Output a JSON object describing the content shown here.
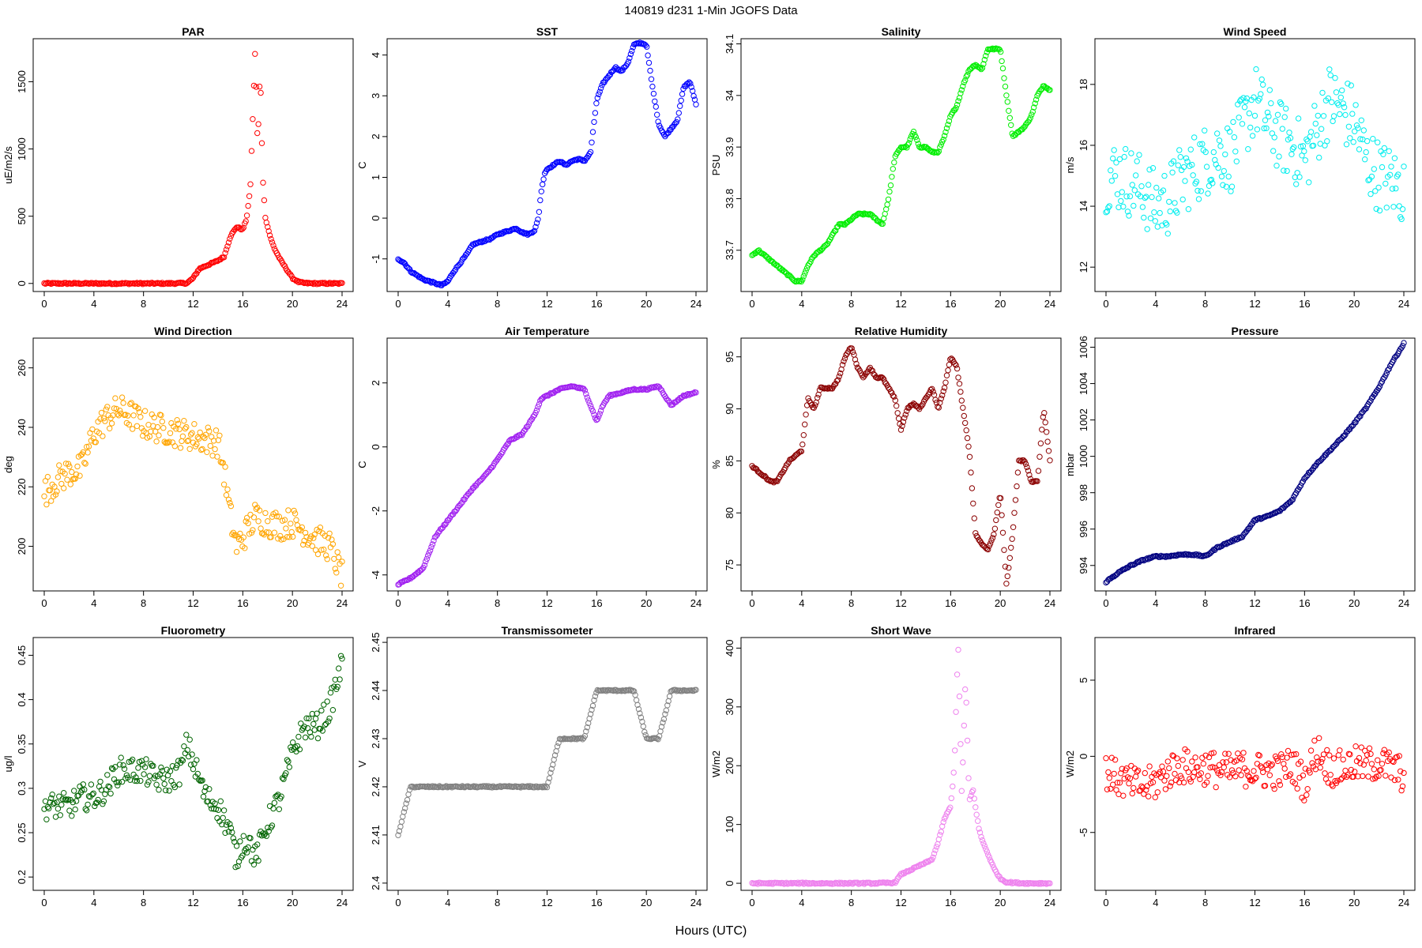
{
  "title": "140819    d231    1-Min  JGOFS Data",
  "xlabel": "Hours (UTC)",
  "chart_data": [
    {
      "type": "scatter",
      "title": "PAR",
      "ylabel": "uE/m2/s",
      "color": "#ff0000",
      "xlim": [
        0,
        24
      ],
      "ylim": [
        -60,
        1820
      ],
      "yticks": [
        0,
        500,
        1000,
        1500
      ],
      "xticks": [
        0,
        4,
        8,
        12,
        16,
        20,
        24
      ],
      "x": [
        0,
        2,
        4,
        6,
        8,
        10,
        11.5,
        12,
        12.5,
        13,
        13.5,
        14,
        14.5,
        15,
        15.5,
        16,
        16.3,
        16.6,
        17,
        17.2,
        17.4,
        17.6,
        17.8,
        18,
        18.3,
        18.6,
        19,
        19.5,
        20,
        20.5,
        21,
        22,
        23,
        24
      ],
      "y": [
        0,
        0,
        0,
        0,
        0,
        0,
        2,
        40,
        110,
        130,
        150,
        170,
        200,
        350,
        420,
        400,
        480,
        700,
        1750,
        1000,
        1600,
        800,
        500,
        420,
        320,
        250,
        180,
        110,
        40,
        10,
        2,
        0,
        0,
        0
      ]
    },
    {
      "type": "scatter",
      "title": "SST",
      "ylabel": "C",
      "color": "#0000ff",
      "xlim": [
        0,
        24
      ],
      "ylim": [
        -1.8,
        4.4
      ],
      "yticks": [
        -1,
        0,
        1,
        2,
        3,
        4
      ],
      "xticks": [
        0,
        4,
        8,
        12,
        16,
        20,
        24
      ],
      "x": [
        0,
        0.5,
        1,
        1.5,
        2,
        2.5,
        3,
        3.5,
        4,
        4.5,
        5,
        5.5,
        6,
        6.5,
        7,
        7.5,
        8,
        8.5,
        9,
        9.5,
        10,
        10.5,
        11,
        11.3,
        11.5,
        11.8,
        12,
        12.5,
        13,
        13.5,
        14,
        14.5,
        15,
        15.5,
        16,
        16.5,
        17,
        17.5,
        18,
        18.5,
        19,
        19.5,
        20,
        20.5,
        21,
        21.5,
        22,
        22.5,
        23,
        23.5,
        24
      ],
      "y": [
        -1,
        -1.1,
        -1.3,
        -1.4,
        -1.5,
        -1.55,
        -1.6,
        -1.65,
        -1.55,
        -1.3,
        -1.1,
        -0.9,
        -0.65,
        -0.6,
        -0.55,
        -0.5,
        -0.4,
        -0.35,
        -0.3,
        -0.25,
        -0.35,
        -0.4,
        -0.3,
        0,
        0.6,
        1.1,
        1.2,
        1.3,
        1.4,
        1.3,
        1.4,
        1.45,
        1.4,
        1.6,
        2.9,
        3.3,
        3.5,
        3.7,
        3.6,
        3.8,
        4.25,
        4.3,
        4.25,
        3.2,
        2.3,
        2,
        2.2,
        2.4,
        3.2,
        3.35,
        2.8
      ]
    },
    {
      "type": "scatter",
      "title": "Salinity",
      "ylabel": "PSU",
      "color": "#00ee00",
      "xlim": [
        0,
        24
      ],
      "ylim": [
        33.62,
        34.11
      ],
      "yticks": [
        33.7,
        33.8,
        33.9,
        34.0,
        34.1
      ],
      "xticks": [
        0,
        4,
        8,
        12,
        16,
        20,
        24
      ],
      "x": [
        0,
        0.5,
        1,
        1.5,
        2,
        2.5,
        3,
        3.5,
        4,
        4.5,
        5,
        5.5,
        6,
        6.5,
        7,
        7.5,
        8,
        8.5,
        9,
        9.5,
        10,
        10.5,
        11,
        11.5,
        12,
        12.5,
        13,
        13.5,
        14,
        14.5,
        15,
        15.5,
        16,
        16.5,
        17,
        17.5,
        18,
        18.5,
        19,
        19.5,
        20,
        20.5,
        21,
        21.5,
        22,
        22.5,
        23,
        23.5,
        24
      ],
      "y": [
        33.69,
        33.7,
        33.69,
        33.68,
        33.67,
        33.66,
        33.65,
        33.64,
        33.64,
        33.67,
        33.69,
        33.7,
        33.71,
        33.73,
        33.75,
        33.75,
        33.76,
        33.77,
        33.77,
        33.77,
        33.76,
        33.75,
        33.8,
        33.88,
        33.9,
        33.9,
        33.93,
        33.9,
        33.9,
        33.89,
        33.89,
        33.92,
        33.96,
        33.98,
        34.02,
        34.05,
        34.06,
        34.05,
        34.09,
        34.09,
        34.09,
        34.0,
        33.92,
        33.93,
        33.94,
        33.96,
        34.0,
        34.02,
        34.01
      ]
    },
    {
      "type": "scatter",
      "title": "Wind Speed",
      "ylabel": "m/s",
      "color": "#00eeee",
      "xlim": [
        0,
        24
      ],
      "ylim": [
        11.2,
        19.5
      ],
      "yticks": [
        12,
        14,
        16,
        18
      ],
      "xticks": [
        0,
        4,
        8,
        12,
        16,
        20,
        24
      ],
      "x": [
        0,
        1,
        2,
        3,
        4,
        5,
        6,
        7,
        8,
        9,
        10,
        11,
        12,
        13,
        14,
        15,
        16,
        17,
        18,
        19,
        20,
        21,
        22,
        23,
        24
      ],
      "y": [
        15,
        15,
        14.8,
        14.5,
        14,
        14.2,
        14.8,
        15.2,
        15.5,
        15.8,
        15.6,
        16.5,
        17.5,
        16.8,
        16.3,
        16.0,
        15.5,
        16.5,
        17.5,
        17.2,
        16.8,
        15.5,
        15.0,
        14.8,
        14.5
      ],
      "spread": 1.2
    },
    {
      "type": "scatter",
      "title": "Wind Direction",
      "ylabel": "deg",
      "color": "#ffa500",
      "xlim": [
        0,
        24
      ],
      "ylim": [
        185,
        270
      ],
      "yticks": [
        200,
        220,
        240,
        260
      ],
      "xticks": [
        0,
        4,
        8,
        12,
        16,
        20,
        24
      ],
      "x": [
        0,
        1,
        2,
        3,
        4,
        5,
        6,
        7,
        8,
        9,
        10,
        11,
        12,
        13,
        14,
        14.5,
        15,
        15.5,
        16,
        17,
        18,
        19,
        20,
        21,
        22,
        23,
        24
      ],
      "y": [
        218,
        222,
        225,
        226,
        238,
        243,
        246,
        244,
        241,
        240,
        239,
        238,
        237,
        236,
        235,
        225,
        210,
        200,
        203,
        210,
        208,
        207,
        208,
        205,
        202,
        200,
        190
      ],
      "spread": 5
    },
    {
      "type": "scatter",
      "title": "Air Temperature",
      "ylabel": "C",
      "color": "#a020f0",
      "xlim": [
        0,
        24
      ],
      "ylim": [
        -4.5,
        3.4
      ],
      "yticks": [
        -4,
        -2,
        0,
        2
      ],
      "xticks": [
        0,
        4,
        8,
        12,
        16,
        20,
        24
      ],
      "x": [
        0,
        1,
        2,
        3,
        4,
        5,
        6,
        7,
        8,
        9,
        10,
        11,
        11.5,
        12,
        12.5,
        13,
        14,
        15,
        15.5,
        16,
        16.5,
        17,
        18,
        19,
        20,
        21,
        22,
        23,
        24
      ],
      "y": [
        -4.3,
        -4.1,
        -3.8,
        -2.8,
        -2.3,
        -1.8,
        -1.3,
        -0.9,
        -0.4,
        0.2,
        0.4,
        1.0,
        1.5,
        1.6,
        1.7,
        1.8,
        1.9,
        1.8,
        1.3,
        0.8,
        1.3,
        1.6,
        1.7,
        1.8,
        1.8,
        1.9,
        1.3,
        1.6,
        1.7
      ]
    },
    {
      "type": "scatter",
      "title": "Relative Humidity",
      "ylabel": "%",
      "color": "#8b0000",
      "xlim": [
        0,
        24
      ],
      "ylim": [
        72.5,
        96.8
      ],
      "yticks": [
        75,
        80,
        85,
        90,
        95
      ],
      "xticks": [
        0,
        4,
        8,
        12,
        16,
        20,
        24
      ],
      "x": [
        0,
        0.5,
        1,
        1.5,
        2,
        2.5,
        3,
        3.5,
        4,
        4.5,
        5,
        5.5,
        6,
        6.5,
        7,
        7.5,
        8,
        8.5,
        9,
        9.5,
        10,
        10.5,
        11,
        11.5,
        12,
        12.5,
        13,
        13.5,
        14,
        14.5,
        15,
        15.5,
        16,
        16.5,
        17,
        17.5,
        18,
        18.5,
        19,
        19.5,
        20,
        20.5,
        21,
        21.5,
        22,
        22.5,
        23,
        23.5,
        24
      ],
      "y": [
        84.5,
        84,
        83.5,
        83,
        83,
        84,
        85,
        85.5,
        86,
        91,
        90,
        92,
        92,
        92,
        93,
        95,
        96,
        94,
        93,
        94,
        93,
        93,
        92,
        91,
        88,
        90,
        90.5,
        90,
        91,
        92,
        90,
        92,
        95,
        94,
        90,
        86,
        78,
        77,
        76.5,
        78,
        82,
        73,
        78,
        85,
        85,
        83,
        83,
        90,
        85
      ]
    },
    {
      "type": "scatter",
      "title": "Pressure",
      "ylabel": "mbar",
      "color": "#000080",
      "xlim": [
        0,
        24
      ],
      "ylim": [
        992.6,
        1006.5
      ],
      "yticks": [
        994,
        996,
        998,
        1000,
        1002,
        1004,
        1006
      ],
      "xticks": [
        0,
        4,
        8,
        12,
        16,
        20,
        24
      ],
      "x": [
        0,
        1,
        2,
        3,
        4,
        5,
        6,
        7,
        8,
        9,
        10,
        11,
        12,
        13,
        14,
        15,
        16,
        17,
        18,
        19,
        20,
        21,
        22,
        23,
        24
      ],
      "y": [
        993.1,
        993.6,
        994.0,
        994.3,
        994.5,
        994.5,
        994.6,
        994.6,
        994.5,
        995.0,
        995.3,
        995.6,
        996.5,
        996.7,
        997.0,
        997.6,
        998.8,
        999.6,
        1000.3,
        1001.0,
        1001.8,
        1002.7,
        1003.8,
        1005.1,
        1006.2
      ]
    },
    {
      "type": "scatter",
      "title": "Fluorometry",
      "ylabel": "ug/l",
      "color": "#006400",
      "xlim": [
        0,
        24
      ],
      "ylim": [
        0.185,
        0.47
      ],
      "yticks": [
        0.2,
        0.25,
        0.3,
        0.35,
        0.4,
        0.45
      ],
      "xticks": [
        0,
        4,
        8,
        12,
        16,
        20,
        24
      ],
      "x": [
        0,
        1,
        2,
        3,
        4,
        5,
        6,
        7,
        8,
        9,
        10,
        11,
        11.5,
        12,
        12.5,
        13,
        14,
        15,
        15.5,
        16,
        16.5,
        17,
        17.5,
        18,
        19,
        20,
        21,
        22,
        23,
        24
      ],
      "y": [
        0.28,
        0.28,
        0.28,
        0.29,
        0.29,
        0.3,
        0.32,
        0.32,
        0.32,
        0.31,
        0.31,
        0.32,
        0.35,
        0.33,
        0.31,
        0.29,
        0.28,
        0.25,
        0.22,
        0.24,
        0.24,
        0.22,
        0.24,
        0.26,
        0.29,
        0.34,
        0.37,
        0.37,
        0.39,
        0.44
      ],
      "spread": 0.015
    },
    {
      "type": "scatter",
      "title": "Transmissometer",
      "ylabel": "V",
      "color": "#808080",
      "xlim": [
        0,
        24
      ],
      "ylim": [
        2.3985,
        2.451
      ],
      "yticks": [
        2.4,
        2.41,
        2.42,
        2.43,
        2.44,
        2.45
      ],
      "xticks": [
        0,
        4,
        8,
        12,
        16,
        20,
        24
      ],
      "x": [
        0,
        1,
        2,
        3,
        4,
        5,
        6,
        7,
        8,
        9,
        10,
        11,
        12,
        13,
        14,
        15,
        16,
        17,
        18,
        19,
        20,
        21,
        22,
        23,
        24
      ],
      "y": [
        2.41,
        2.42,
        2.42,
        2.42,
        2.42,
        2.42,
        2.42,
        2.42,
        2.42,
        2.42,
        2.42,
        2.42,
        2.42,
        2.43,
        2.43,
        2.43,
        2.44,
        2.44,
        2.44,
        2.44,
        2.43,
        2.43,
        2.44,
        2.44,
        2.44
      ]
    },
    {
      "type": "scatter",
      "title": "Short Wave",
      "ylabel": "W/m2",
      "color": "#ee82ee",
      "xlim": [
        0,
        24
      ],
      "ylim": [
        -12,
        418
      ],
      "yticks": [
        0,
        100,
        200,
        300,
        400
      ],
      "xticks": [
        0,
        4,
        8,
        12,
        16,
        20,
        24
      ],
      "x": [
        0,
        2,
        4,
        6,
        8,
        10,
        11.5,
        12,
        12.5,
        13,
        13.5,
        14,
        14.5,
        15,
        15.5,
        16,
        16.3,
        16.6,
        16.9,
        17.2,
        17.5,
        17.8,
        18,
        18.3,
        18.6,
        19,
        19.5,
        20,
        20.5,
        21,
        22,
        23,
        24
      ],
      "y": [
        0,
        0,
        0,
        0,
        0,
        0,
        1,
        15,
        20,
        25,
        30,
        35,
        40,
        70,
        110,
        130,
        200,
        410,
        150,
        350,
        140,
        160,
        130,
        90,
        70,
        50,
        25,
        8,
        2,
        1,
        0,
        0,
        0
      ]
    },
    {
      "type": "scatter",
      "title": "Infrared",
      "ylabel": "W/m2",
      "color": "#ff0000",
      "xlim": [
        0,
        24
      ],
      "ylim": [
        -8.8,
        7.8
      ],
      "yticks": [
        -5,
        0,
        5
      ],
      "xticks": [
        0,
        4,
        8,
        12,
        16,
        20,
        24
      ],
      "x": [
        0,
        1,
        2,
        3,
        4,
        5,
        6,
        7,
        8,
        9,
        10,
        11,
        12,
        13,
        14,
        15,
        16,
        17,
        18,
        19,
        20,
        21,
        22,
        23,
        24
      ],
      "y": [
        -1,
        -1.5,
        -1.8,
        -2.0,
        -1.7,
        -1.0,
        -0.6,
        -0.8,
        -0.7,
        -0.9,
        -1.0,
        -0.8,
        -0.9,
        -1.0,
        -1.0,
        -0.5,
        -1.8,
        0.5,
        -0.8,
        -0.8,
        -0.5,
        -0.6,
        -0.4,
        -0.8,
        -1.2
      ],
      "spread": 1.2
    }
  ]
}
